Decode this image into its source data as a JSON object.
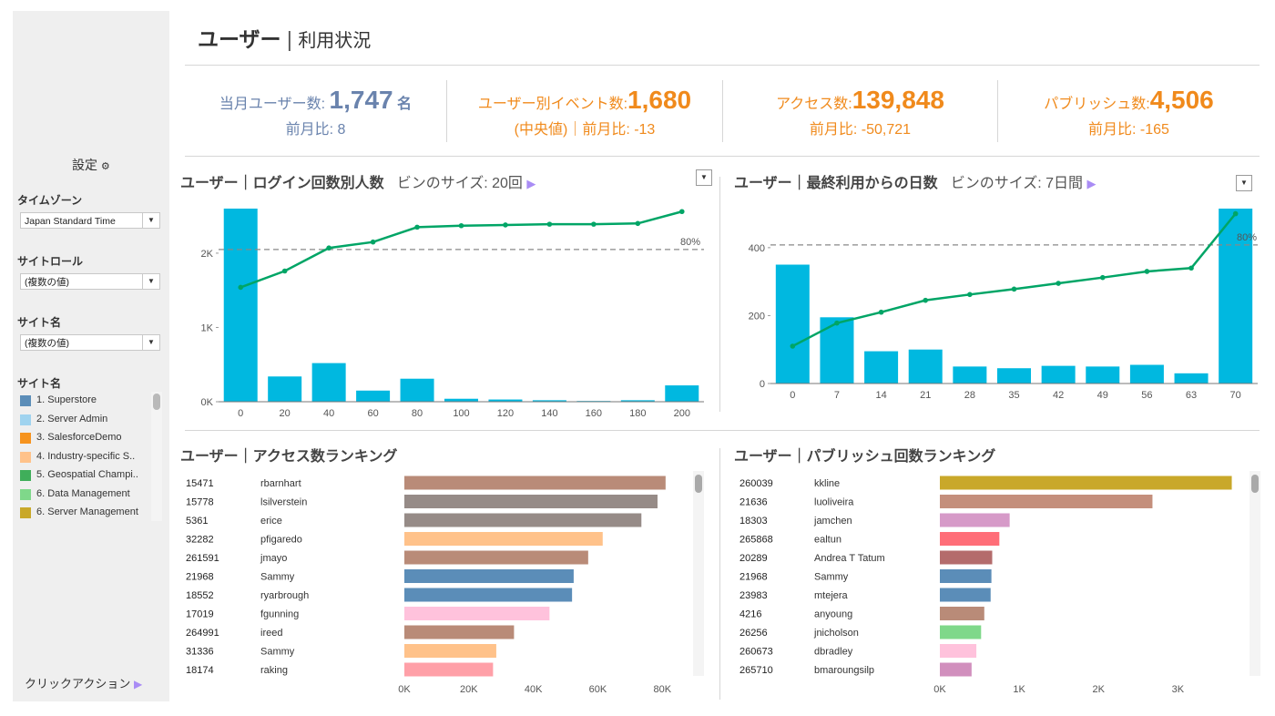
{
  "sidebar": {
    "settings_label": "設定",
    "timezone": {
      "label": "タイムゾーン",
      "value": "Japan Standard Time"
    },
    "site_role": {
      "label": "サイトロール",
      "value": "(複数の値)"
    },
    "site_name_filter": {
      "label": "サイト名",
      "value": "(複数の値)"
    },
    "site_legend": {
      "label": "サイト名",
      "items": [
        {
          "label": "1. Superstore",
          "color": "#5b8db8"
        },
        {
          "label": "2.  Server Admin",
          "color": "#9fd3ef"
        },
        {
          "label": "3. SalesforceDemo",
          "color": "#f6931e"
        },
        {
          "label": "4. Industry-specific S..",
          "color": "#ffc28a"
        },
        {
          "label": "5. Geospatial Champi..",
          "color": "#3fae5a"
        },
        {
          "label": "6. Data Management",
          "color": "#7fd88a"
        },
        {
          "label": "6. Server Management",
          "color": "#c9a82a"
        }
      ]
    },
    "click_action_label": "クリックアクション"
  },
  "header": {
    "title": "ユーザー",
    "subtitle": "利用状況"
  },
  "kpis": [
    {
      "label": "当月ユーザー数:",
      "value": "1,747",
      "unit": "名",
      "sub": "前月比: 8",
      "color": "#6a83ad"
    },
    {
      "label": "ユーザー別イベント数:",
      "value": "1,680",
      "unit": "",
      "sub": "(中央値)｜前月比: -13",
      "color": "#f08a1c"
    },
    {
      "label": "アクセス数:",
      "value": "139,848",
      "unit": "",
      "sub": "前月比: -50,721",
      "color": "#f08a1c"
    },
    {
      "label": "パブリッシュ数:",
      "value": "4,506",
      "unit": "",
      "sub": "前月比: -165",
      "color": "#f08a1c"
    }
  ],
  "login_chart": {
    "title": "ユーザー｜ログイン回数別人数",
    "bin_label": "ビンのサイズ: 20回",
    "ref_label": "80%",
    "y_ticks": [
      "0K",
      "1K",
      "2K"
    ]
  },
  "lastuse_chart": {
    "title": "ユーザー｜最終利用からの日数",
    "bin_label": "ビンのサイズ: 7日間",
    "ref_label": "80%",
    "y_ticks": [
      "0",
      "200",
      "400"
    ]
  },
  "access_ranking": {
    "title": "ユーザー｜アクセス数ランキング",
    "x_ticks": [
      "0K",
      "20K",
      "40K",
      "60K",
      "80K"
    ],
    "rows": [
      {
        "id": "15471",
        "name": "rbarnhart",
        "color": "#b98b78"
      },
      {
        "id": "15778",
        "name": "lsilverstein",
        "color": "#968b87"
      },
      {
        "id": "5361",
        "name": "erice",
        "color": "#968b87"
      },
      {
        "id": "32282",
        "name": "pfigaredo",
        "color": "#ffc28a"
      },
      {
        "id": "261591",
        "name": "jmayo",
        "color": "#b98b78"
      },
      {
        "id": "21968",
        "name": "Sammy",
        "color": "#5b8db8"
      },
      {
        "id": "18552",
        "name": "ryarbrough",
        "color": "#5b8db8"
      },
      {
        "id": "17019",
        "name": "fgunning",
        "color": "#ffc2dc"
      },
      {
        "id": "264991",
        "name": "ireed",
        "color": "#b98b78"
      },
      {
        "id": "31336",
        "name": "Sammy",
        "color": "#ffc28a"
      },
      {
        "id": "18174",
        "name": "raking",
        "color": "#ffa0a8"
      }
    ]
  },
  "publish_ranking": {
    "title": "ユーザー｜パブリッシュ回数ランキング",
    "x_ticks": [
      "0K",
      "1K",
      "2K",
      "3K"
    ],
    "rows": [
      {
        "id": "260039",
        "name": "kkline",
        "color": "#c9a82a"
      },
      {
        "id": "21636",
        "name": "luoliveira",
        "color": "#c48f7c"
      },
      {
        "id": "18303",
        "name": "jamchen",
        "color": "#d69ac8"
      },
      {
        "id": "265868",
        "name": "ealtun",
        "color": "#ff6e78"
      },
      {
        "id": "20289",
        "name": "Andrea T Tatum",
        "color": "#b46c6c"
      },
      {
        "id": "21968",
        "name": "Sammy",
        "color": "#5b8db8"
      },
      {
        "id": "23983",
        "name": "mtejera",
        "color": "#5b8db8"
      },
      {
        "id": "4216",
        "name": "anyoung",
        "color": "#b98b78"
      },
      {
        "id": "26256",
        "name": "jnicholson",
        "color": "#7fd88a"
      },
      {
        "id": "260673",
        "name": "dbradley",
        "color": "#ffc2dc"
      },
      {
        "id": "265710",
        "name": "bmaroungsilp",
        "color": "#d18fbd"
      }
    ]
  },
  "chart_data": [
    {
      "type": "bar",
      "title": "ユーザー｜ログイン回数別人数",
      "categories": [
        "0",
        "20",
        "40",
        "60",
        "80",
        "100",
        "120",
        "140",
        "160",
        "180",
        "200"
      ],
      "series": [
        {
          "values": [
            2600,
            340,
            520,
            150,
            310,
            40,
            30,
            20,
            10,
            20,
            220
          ],
          "color": "#00b8e0"
        },
        {
          "values": [
            1540,
            1760,
            2070,
            2150,
            2350,
            2370,
            2380,
            2390,
            2390,
            2400,
            2560
          ],
          "color": "#00a566"
        }
      ],
      "ylim": [
        0,
        2600
      ],
      "reference_line": {
        "value": 2050,
        "label": "80%"
      }
    },
    {
      "type": "bar",
      "title": "ユーザー｜最終利用からの日数",
      "categories": [
        "0",
        "7",
        "14",
        "21",
        "28",
        "35",
        "42",
        "49",
        "56",
        "63",
        "70"
      ],
      "series": [
        {
          "values": [
            350,
            195,
            95,
            100,
            50,
            45,
            52,
            50,
            55,
            30,
            515
          ],
          "color": "#00b8e0"
        },
        {
          "values": [
            110,
            178,
            210,
            245,
            262,
            278,
            295,
            312,
            330,
            340,
            500
          ],
          "color": "#00a566"
        }
      ],
      "ylim": [
        0,
        515
      ],
      "reference_line": {
        "value": 408,
        "label": "80%"
      }
    },
    {
      "type": "bar",
      "orientation": "horizontal",
      "title": "ユーザー｜アクセス数ランキング",
      "categories": [
        "rbarnhart",
        "lsilverstein",
        "erice",
        "pfigaredo",
        "jmayo",
        "Sammy",
        "ryarbrough",
        "fgunning",
        "ireed",
        "Sammy",
        "raking"
      ],
      "values": [
        81000,
        78500,
        73500,
        61500,
        57000,
        52500,
        52000,
        45000,
        34000,
        28500,
        27500
      ],
      "xlim": [
        0,
        85000
      ]
    },
    {
      "type": "bar",
      "orientation": "horizontal",
      "title": "ユーザー｜パブリッシュ回数ランキング",
      "categories": [
        "kkline",
        "luoliveira",
        "jamchen",
        "ealtun",
        "Andrea T Tatum",
        "Sammy",
        "mtejera",
        "anyoung",
        "jnicholson",
        "dbradley",
        "bmaroungsilp"
      ],
      "values": [
        3680,
        2680,
        880,
        750,
        660,
        650,
        640,
        560,
        520,
        460,
        400
      ],
      "xlim": [
        0,
        3800
      ]
    }
  ]
}
